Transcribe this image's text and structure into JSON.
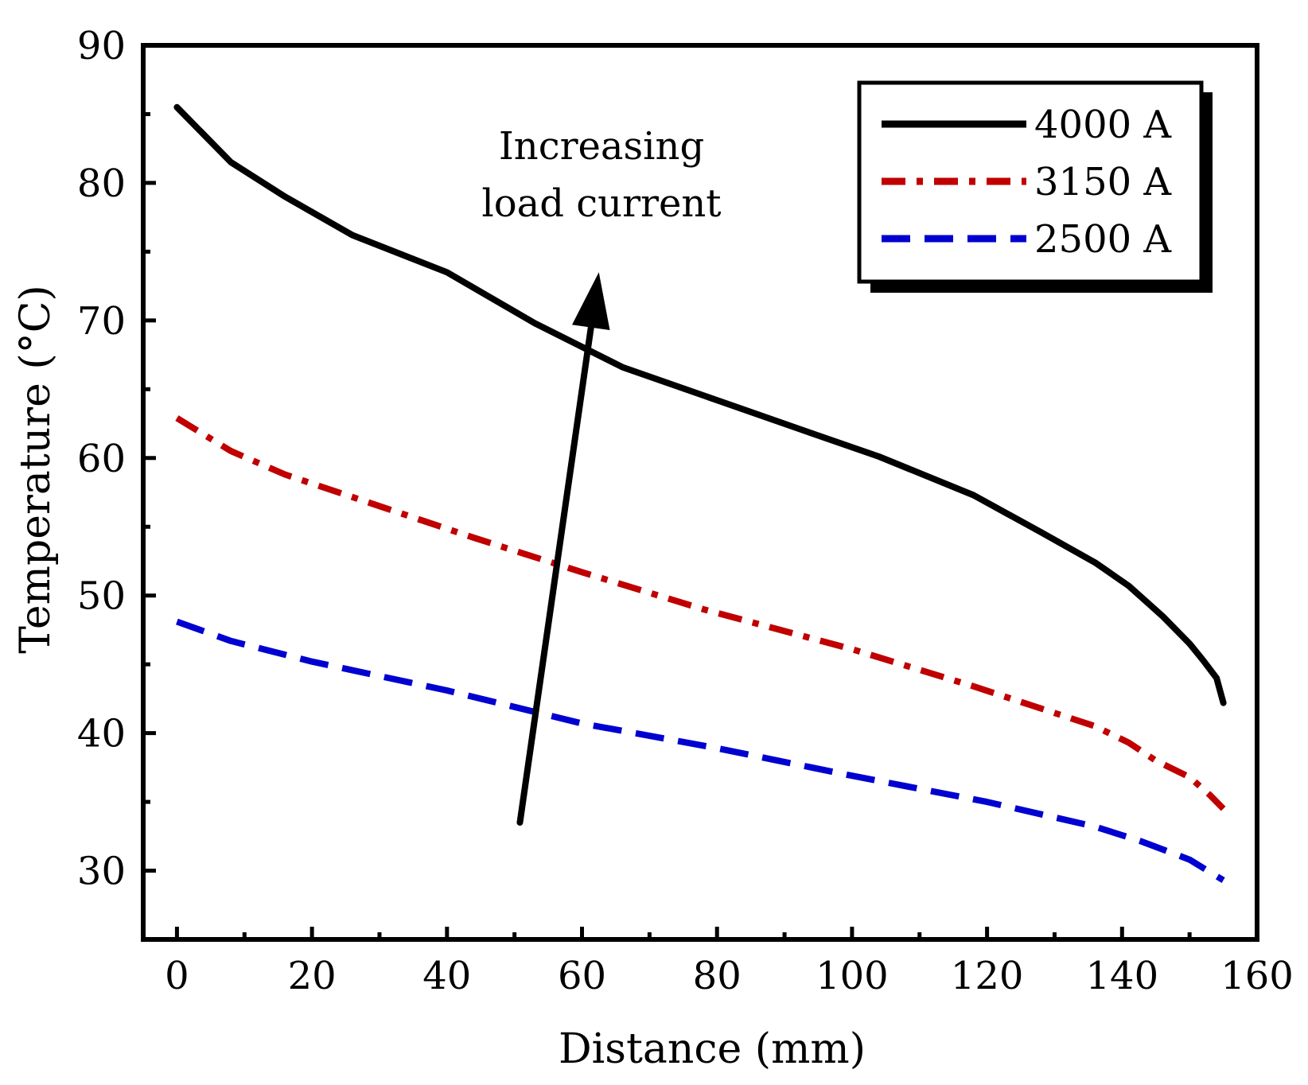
{
  "chart_data": {
    "type": "line",
    "title": "",
    "xlabel": "Distance (mm)",
    "ylabel": "Temperature (°C)",
    "xlim": [
      -5,
      160
    ],
    "ylim": [
      25,
      90
    ],
    "xticks": [
      0,
      20,
      40,
      60,
      80,
      100,
      120,
      140,
      160
    ],
    "xtick_labels": [
      "0",
      "20",
      "40",
      "60",
      "80",
      "100",
      "120",
      "140",
      "160"
    ],
    "xminor_ticks": [
      10,
      30,
      50,
      70,
      90,
      110,
      130,
      150
    ],
    "yticks": [
      30,
      40,
      50,
      60,
      70,
      80,
      90
    ],
    "ytick_labels": [
      "30",
      "40",
      "50",
      "60",
      "70",
      "80",
      "90"
    ],
    "yminor_ticks": [
      35,
      45,
      55,
      65,
      75,
      85
    ],
    "grid": false,
    "legend_position": "top-right",
    "series": [
      {
        "name": "4000 A",
        "color": "#000000",
        "style": "solid",
        "x": [
          0,
          8,
          16,
          26,
          40,
          53,
          66,
          80,
          94,
          104,
          118,
          128,
          136,
          141,
          146,
          150,
          152,
          154,
          155
        ],
        "y": [
          85.5,
          81.5,
          79,
          76.2,
          73.5,
          69.8,
          66.6,
          64.2,
          61.8,
          60.1,
          57.3,
          54.6,
          52.4,
          50.7,
          48.5,
          46.5,
          45.3,
          44.0,
          42.2
        ]
      },
      {
        "name": "3150 A",
        "color": "#c00000",
        "style": "dash-dot",
        "x": [
          0,
          8,
          16,
          30,
          44,
          60,
          78,
          100,
          118,
          136,
          141,
          145,
          150,
          153,
          155
        ],
        "y": [
          62.9,
          60.5,
          58.8,
          56.5,
          54.2,
          51.7,
          49.0,
          46.1,
          43.4,
          40.5,
          39.3,
          38.0,
          36.8,
          35.5,
          34.5
        ]
      },
      {
        "name": "2500 A",
        "color": "#0000d0",
        "style": "dashed",
        "x": [
          0,
          8,
          20,
          40,
          60,
          80,
          100,
          120,
          136,
          143,
          150,
          153,
          155
        ],
        "y": [
          48.1,
          46.7,
          45.2,
          43.1,
          40.7,
          38.9,
          36.9,
          35.0,
          33.2,
          32.1,
          30.8,
          29.9,
          29.3
        ]
      }
    ],
    "annotations": [
      {
        "type": "arrow",
        "text": [
          "Increasing",
          "load current"
        ],
        "from": [
          50.8,
          33.5
        ],
        "to": [
          62.5,
          73.5
        ]
      }
    ]
  }
}
